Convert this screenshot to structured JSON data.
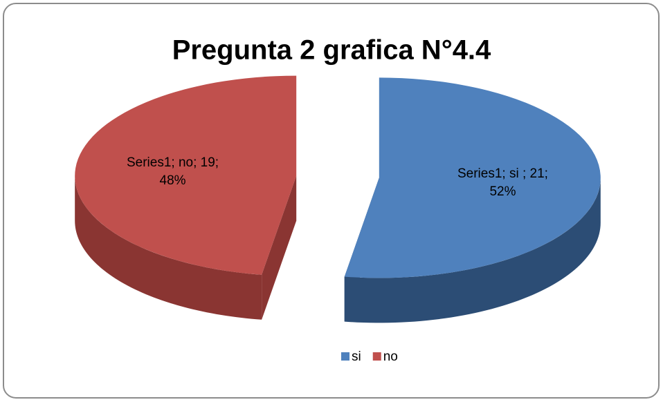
{
  "chart_data": {
    "type": "pie",
    "title": "Pregunta 2 grafica N°4.4",
    "series_name": "Series1",
    "categories": [
      "si",
      "no"
    ],
    "values": [
      21,
      19
    ],
    "value_labels": [
      [
        "Series1; si ; 21;",
        "52%"
      ],
      [
        "Series1; no; 19;",
        "48%"
      ]
    ],
    "colors": [
      "#4f81bd",
      "#c0504d"
    ],
    "side_colors": [
      "#2c4d75",
      "#8a3532"
    ],
    "legend": "bottom"
  }
}
